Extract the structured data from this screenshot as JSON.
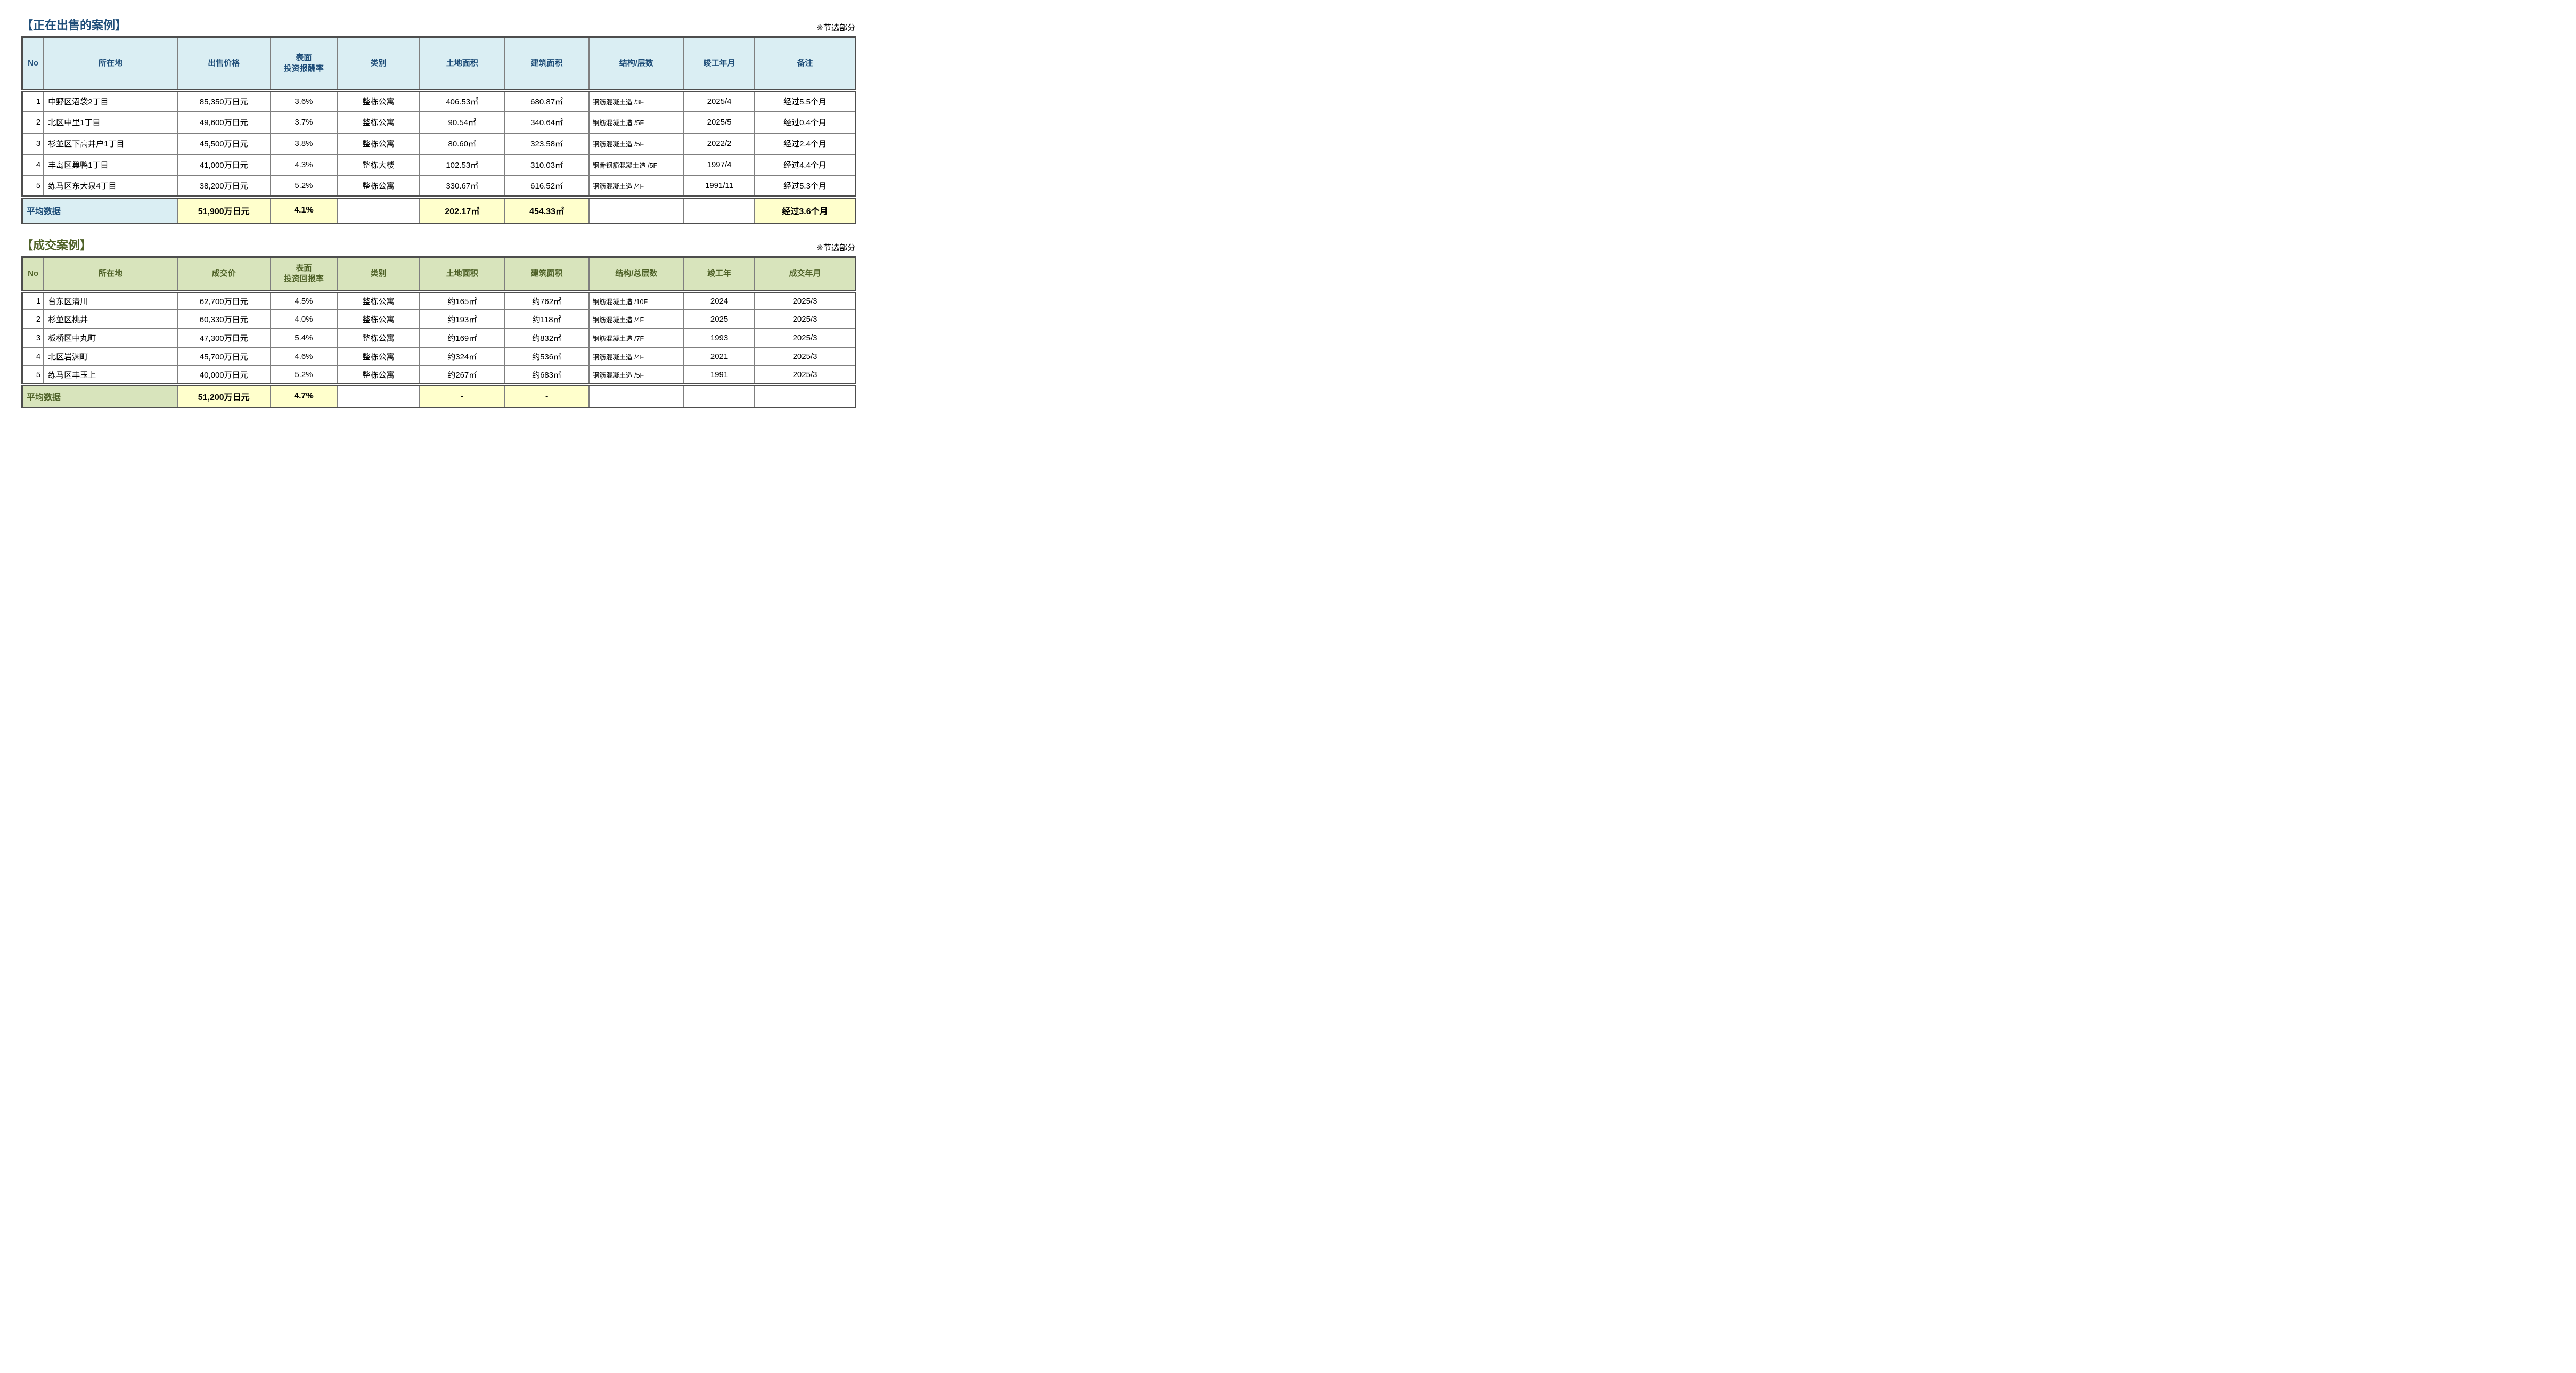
{
  "colors": {
    "yellow_highlight": "#ffffcc",
    "grid_border": "#7f7f7f",
    "frame_border": "#4d4d4d"
  },
  "table1": {
    "title": "【正在出售的案例】",
    "note": "※节选部分",
    "accent": "#1f4e79",
    "header_bg": "#daeef3",
    "headers": {
      "no": "No",
      "location": "所在地",
      "price": "出售价格",
      "rate_line1": "表面",
      "rate_line2": "投资报酬率",
      "category": "类别",
      "land": "土地面积",
      "building": "建筑面积",
      "structure": "结构/层数",
      "completed": "竣工年月",
      "remark": "备注"
    },
    "rows": [
      {
        "no": "1",
        "location": "中野区沼袋2丁目",
        "price": "85,350万日元",
        "rate": "3.6%",
        "category": "整栋公寓",
        "land": "406.53㎡",
        "building": "680.87㎡",
        "structure": "钢筋混凝土造 /3F",
        "completed": "2025/4",
        "remark": "经过5.5个月"
      },
      {
        "no": "2",
        "location": "北区中里1丁目",
        "price": "49,600万日元",
        "rate": "3.7%",
        "category": "整栋公寓",
        "land": "90.54㎡",
        "building": "340.64㎡",
        "structure": "钢筋混凝土造 /5F",
        "completed": "2025/5",
        "remark": "经过0.4个月"
      },
      {
        "no": "3",
        "location": "衫並区下高井户1丁目",
        "price": "45,500万日元",
        "rate": "3.8%",
        "category": "整栋公寓",
        "land": "80.60㎡",
        "building": "323.58㎡",
        "structure": "钢筋混凝土造 /5F",
        "completed": "2022/2",
        "remark": "经过2.4个月"
      },
      {
        "no": "4",
        "location": "丰岛区巢鸭1丁目",
        "price": "41,000万日元",
        "rate": "4.3%",
        "category": "整栋大楼",
        "land": "102.53㎡",
        "building": "310.03㎡",
        "structure": "钢骨钢筋混凝土造 /5F",
        "completed": "1997/4",
        "remark": "经过4.4个月"
      },
      {
        "no": "5",
        "location": "练马区东大泉4丁目",
        "price": "38,200万日元",
        "rate": "5.2%",
        "category": "整栋公寓",
        "land": "330.67㎡",
        "building": "616.52㎡",
        "structure": "钢筋混凝土造 /4F",
        "completed": "1991/11",
        "remark": "经过5.3个月"
      }
    ],
    "average": {
      "label": "平均数据",
      "price": "51,900万日元",
      "rate": "4.1%",
      "land": "202.17㎡",
      "building": "454.33㎡",
      "remark": "经过3.6个月"
    }
  },
  "table2": {
    "title": "【成交案例】",
    "note": "※节选部分",
    "accent": "#4f6228",
    "header_bg": "#d8e4bc",
    "headers": {
      "no": "No",
      "location": "所在地",
      "price": "成交价",
      "rate_line1": "表面",
      "rate_line2": "投资回报率",
      "category": "类别",
      "land": "土地面积",
      "building": "建筑面积",
      "structure": "结构/总层数",
      "completed": "竣工年",
      "deal_date": "成交年月"
    },
    "rows": [
      {
        "no": "1",
        "location": "台东区清川",
        "price": "62,700万日元",
        "rate": "4.5%",
        "category": "整栋公寓",
        "land": "约165㎡",
        "building": "约762㎡",
        "structure": "钢筋混凝土造 /10F",
        "completed": "2024",
        "deal_date": "2025/3"
      },
      {
        "no": "2",
        "location": "杉並区桃井",
        "price": "60,330万日元",
        "rate": "4.0%",
        "category": "整栋公寓",
        "land": "约193㎡",
        "building": "约118㎡",
        "structure": "钢筋混凝土造 /4F",
        "completed": "2025",
        "deal_date": "2025/3"
      },
      {
        "no": "3",
        "location": "板桥区中丸町",
        "price": "47,300万日元",
        "rate": "5.4%",
        "category": "整栋公寓",
        "land": "约169㎡",
        "building": "约832㎡",
        "structure": "钢筋混凝土造 /7F",
        "completed": "1993",
        "deal_date": "2025/3"
      },
      {
        "no": "4",
        "location": "北区岩渊町",
        "price": "45,700万日元",
        "rate": "4.6%",
        "category": "整栋公寓",
        "land": "约324㎡",
        "building": "约536㎡",
        "structure": "钢筋混凝土造 /4F",
        "completed": "2021",
        "deal_date": "2025/3"
      },
      {
        "no": "5",
        "location": "练马区丰玉上",
        "price": "40,000万日元",
        "rate": "5.2%",
        "category": "整栋公寓",
        "land": "约267㎡",
        "building": "约683㎡",
        "structure": "钢筋混凝土造 /5F",
        "completed": "1991",
        "deal_date": "2025/3"
      }
    ],
    "average": {
      "label": "平均数据",
      "price": "51,200万日元",
      "rate": "4.7%",
      "land": "-",
      "building": "-"
    }
  }
}
